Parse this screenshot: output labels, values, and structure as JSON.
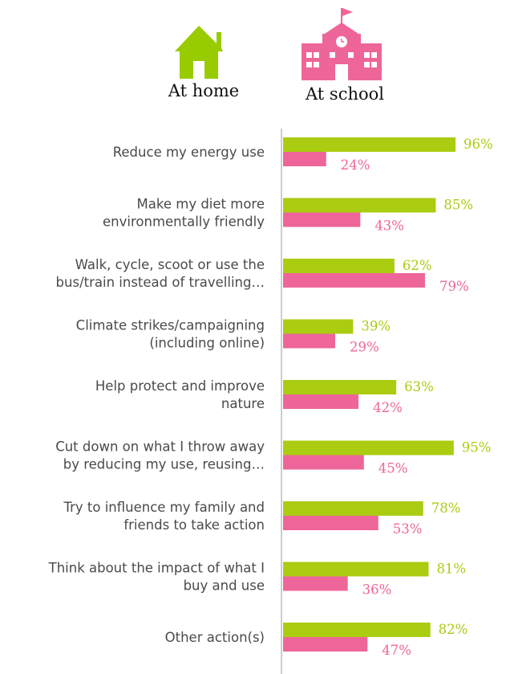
{
  "legend": {
    "home": {
      "label": "At home",
      "icon": "house-icon"
    },
    "school": {
      "label": "At school",
      "icon": "school-building-icon"
    }
  },
  "chart_data": {
    "type": "bar",
    "orientation": "horizontal",
    "categories": [
      [
        "Reduce my energy use"
      ],
      [
        "Make my diet more",
        "environmentally friendly"
      ],
      [
        "Walk, cycle, scoot or use the",
        "bus/train instead of travelling…"
      ],
      [
        "Climate strikes/campaigning",
        "(including online)"
      ],
      [
        "Help protect and improve",
        "nature"
      ],
      [
        "Cut down on what I throw away",
        "by reducing my use, reusing…"
      ],
      [
        "Try to influence my family and",
        "friends to take action"
      ],
      [
        "Think about the impact of what I",
        "buy and use"
      ],
      [
        "Other action(s)"
      ]
    ],
    "series": [
      {
        "name": "At home",
        "color": "#aacc11",
        "values": [
          96,
          85,
          62,
          39,
          63,
          95,
          78,
          81,
          82
        ]
      },
      {
        "name": "At school",
        "color": "#ee6699",
        "values": [
          24,
          43,
          79,
          29,
          42,
          45,
          53,
          36,
          47
        ]
      }
    ],
    "value_suffix": "%",
    "xlim": [
      0,
      100
    ],
    "grid": false,
    "legend_position": "top"
  }
}
